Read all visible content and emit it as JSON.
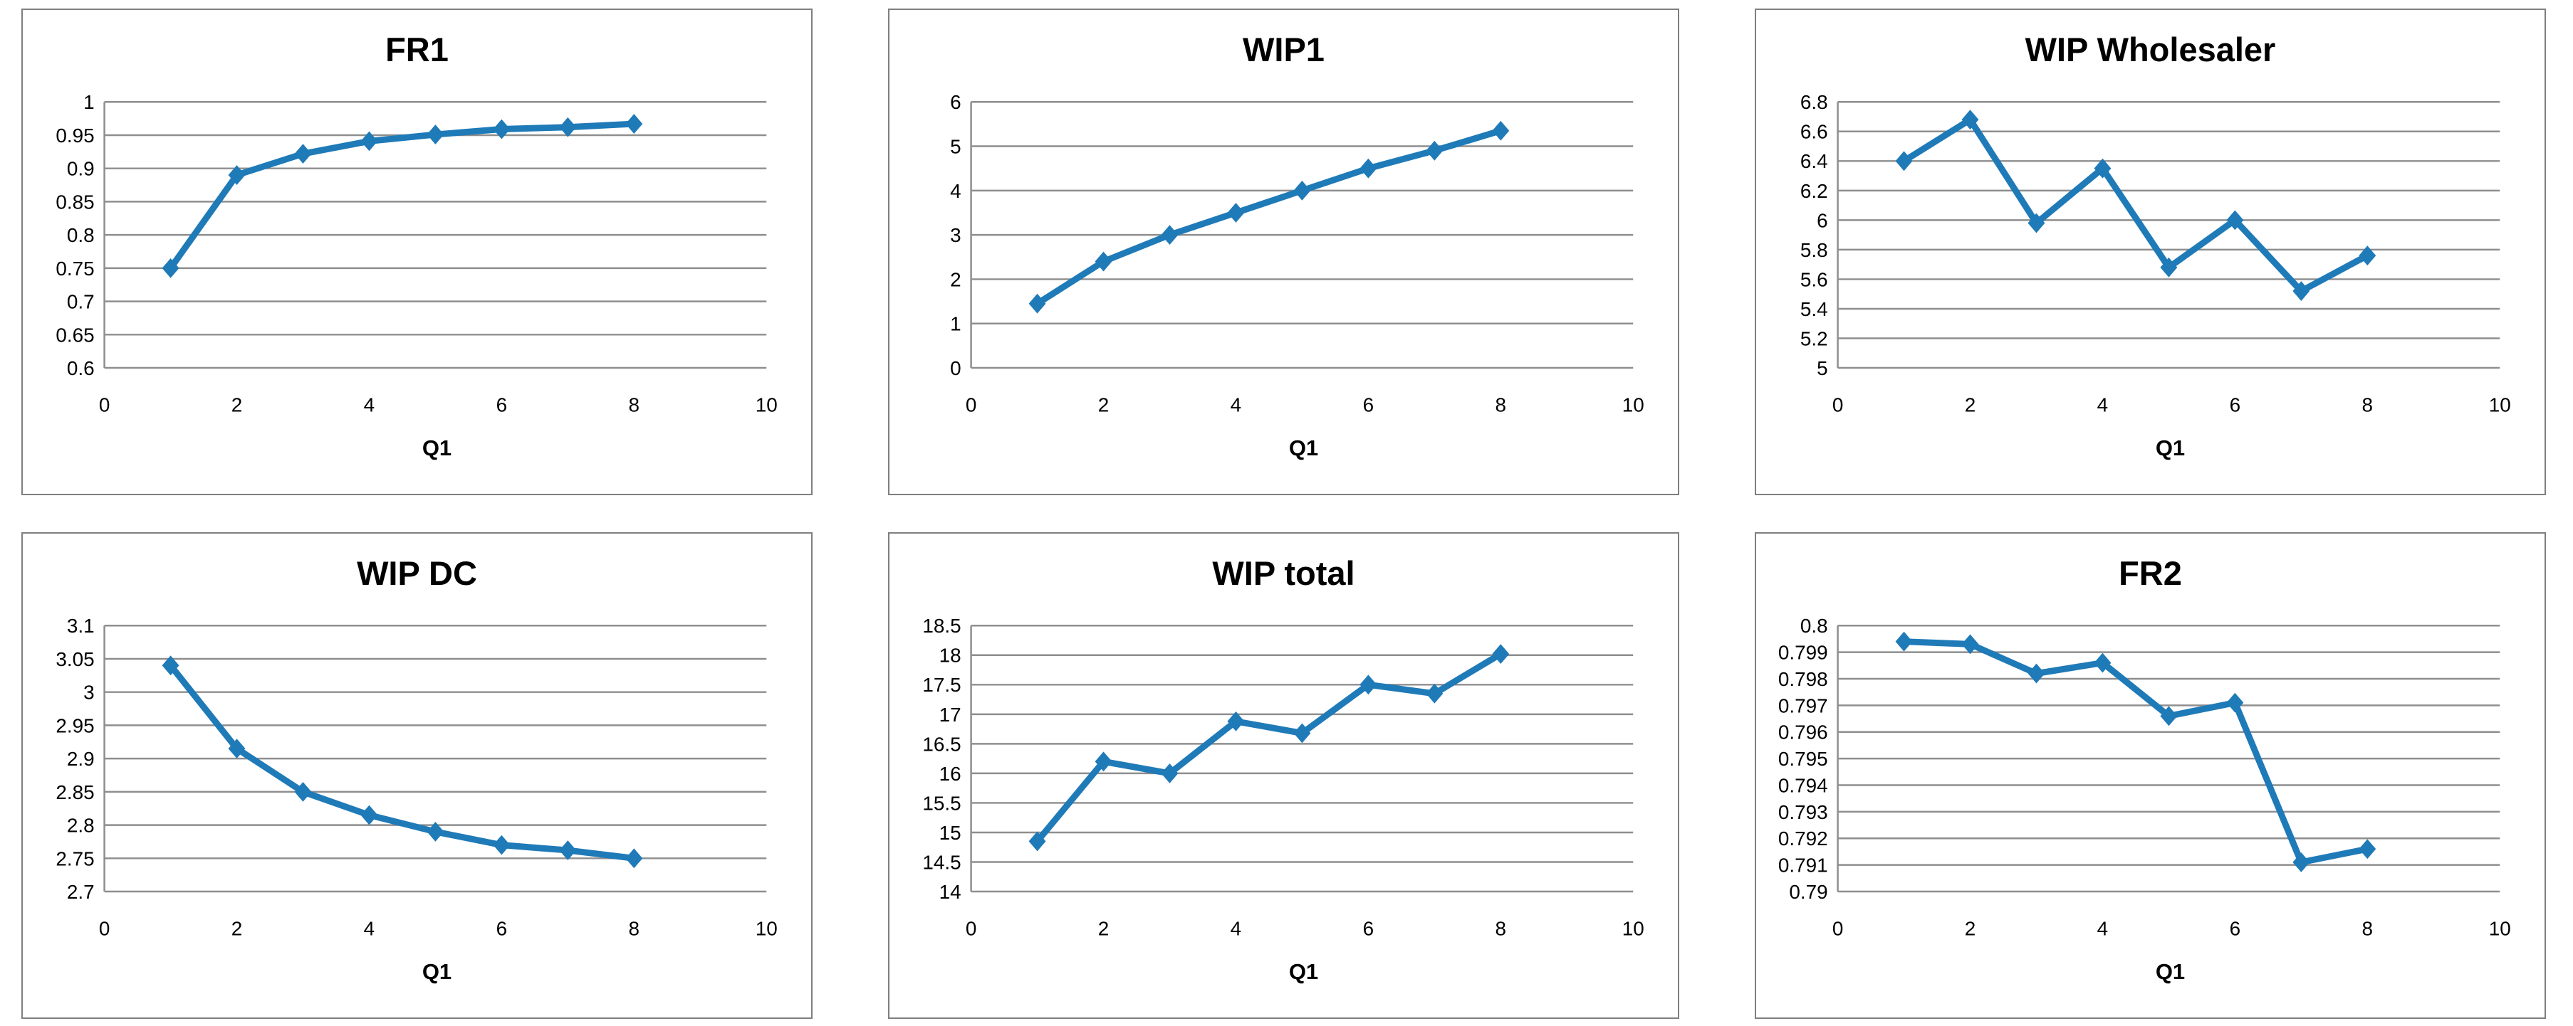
{
  "styles": {
    "series_color": "#1f7ab8",
    "grid_color": "#8e8e8e",
    "axis_color": "#8e8e8e",
    "panel_border_color": "#7f7f7f",
    "text_color": "#000000",
    "background": "#ffffff",
    "marker": "diamond"
  },
  "chart_data": [
    {
      "type": "line",
      "title": "FR1",
      "xlabel": "Q1",
      "x": [
        1,
        2,
        3,
        4,
        5,
        6,
        7,
        8
      ],
      "values": [
        0.75,
        0.89,
        0.922,
        0.941,
        0.951,
        0.959,
        0.962,
        0.967
      ],
      "xlim": [
        0,
        10
      ],
      "xticks": [
        0,
        2,
        4,
        6,
        8,
        10
      ],
      "xtick_labels": [
        "0",
        "2",
        "4",
        "6",
        "8",
        "10"
      ],
      "ylim": [
        0.6,
        1
      ],
      "yticks": [
        0.6,
        0.65,
        0.7,
        0.75,
        0.8,
        0.85,
        0.9,
        0.95,
        1
      ],
      "ytick_labels": [
        "0.6",
        "0.65",
        "0.7",
        "0.75",
        "0.8",
        "0.85",
        "0.9",
        "0.95",
        "1"
      ],
      "grid": "horizontal",
      "legend": "none"
    },
    {
      "type": "line",
      "title": "WIP1",
      "xlabel": "Q1",
      "x": [
        1,
        2,
        3,
        4,
        5,
        6,
        7,
        8
      ],
      "values": [
        1.45,
        2.4,
        3.0,
        3.5,
        4.0,
        4.5,
        4.9,
        5.35
      ],
      "xlim": [
        0,
        10
      ],
      "xticks": [
        0,
        2,
        4,
        6,
        8,
        10
      ],
      "xtick_labels": [
        "0",
        "2",
        "4",
        "6",
        "8",
        "10"
      ],
      "ylim": [
        0,
        6
      ],
      "yticks": [
        0,
        1,
        2,
        3,
        4,
        5,
        6
      ],
      "ytick_labels": [
        "0",
        "1",
        "2",
        "3",
        "4",
        "5",
        "6"
      ],
      "grid": "horizontal",
      "legend": "none"
    },
    {
      "type": "line",
      "title": "WIP Wholesaler",
      "xlabel": "Q1",
      "x": [
        1,
        2,
        3,
        4,
        5,
        6,
        7,
        8
      ],
      "values": [
        6.4,
        6.68,
        5.98,
        6.35,
        5.68,
        6.0,
        5.52,
        5.76
      ],
      "xlim": [
        0,
        10
      ],
      "xticks": [
        0,
        2,
        4,
        6,
        8,
        10
      ],
      "xtick_labels": [
        "0",
        "2",
        "4",
        "6",
        "8",
        "10"
      ],
      "ylim": [
        5,
        6.8
      ],
      "yticks": [
        5,
        5.2,
        5.4,
        5.6,
        5.8,
        6,
        6.2,
        6.4,
        6.6,
        6.8
      ],
      "ytick_labels": [
        "5",
        "5.2",
        "5.4",
        "5.6",
        "5.8",
        "6",
        "6.2",
        "6.4",
        "6.6",
        "6.8"
      ],
      "grid": "horizontal",
      "legend": "none"
    },
    {
      "type": "line",
      "title": "WIP DC",
      "xlabel": "Q1",
      "x": [
        1,
        2,
        3,
        4,
        5,
        6,
        7,
        8
      ],
      "values": [
        3.04,
        2.915,
        2.85,
        2.815,
        2.79,
        2.77,
        2.762,
        2.75
      ],
      "xlim": [
        0,
        10
      ],
      "xticks": [
        0,
        2,
        4,
        6,
        8,
        10
      ],
      "xtick_labels": [
        "0",
        "2",
        "4",
        "6",
        "8",
        "10"
      ],
      "ylim": [
        2.7,
        3.1
      ],
      "yticks": [
        2.7,
        2.75,
        2.8,
        2.85,
        2.9,
        2.95,
        3,
        3.05,
        3.1
      ],
      "ytick_labels": [
        "2.7",
        "2.75",
        "2.8",
        "2.85",
        "2.9",
        "2.95",
        "3",
        "3.05",
        "3.1"
      ],
      "grid": "horizontal",
      "legend": "none"
    },
    {
      "type": "line",
      "title": "WIP total",
      "xlabel": "Q1",
      "x": [
        1,
        2,
        3,
        4,
        5,
        6,
        7,
        8
      ],
      "values": [
        14.85,
        16.2,
        16.0,
        16.88,
        16.68,
        17.5,
        17.35,
        18.02
      ],
      "xlim": [
        0,
        10
      ],
      "xticks": [
        0,
        2,
        4,
        6,
        8,
        10
      ],
      "xtick_labels": [
        "0",
        "2",
        "4",
        "6",
        "8",
        "10"
      ],
      "ylim": [
        14,
        18.5
      ],
      "yticks": [
        14,
        14.5,
        15,
        15.5,
        16,
        16.5,
        17,
        17.5,
        18,
        18.5
      ],
      "ytick_labels": [
        "14",
        "14.5",
        "15",
        "15.5",
        "16",
        "16.5",
        "17",
        "17.5",
        "18",
        "18.5"
      ],
      "grid": "horizontal",
      "legend": "none"
    },
    {
      "type": "line",
      "title": "FR2",
      "xlabel": "Q1",
      "x": [
        1,
        2,
        3,
        4,
        5,
        6,
        7,
        8
      ],
      "values": [
        0.7994,
        0.7993,
        0.7982,
        0.7986,
        0.7966,
        0.7971,
        0.7911,
        0.7916
      ],
      "xlim": [
        0,
        10
      ],
      "xticks": [
        0,
        2,
        4,
        6,
        8,
        10
      ],
      "xtick_labels": [
        "0",
        "2",
        "4",
        "6",
        "8",
        "10"
      ],
      "ylim": [
        0.79,
        0.8
      ],
      "yticks": [
        0.79,
        0.791,
        0.792,
        0.793,
        0.794,
        0.795,
        0.796,
        0.797,
        0.798,
        0.799,
        0.8
      ],
      "ytick_labels": [
        "0.79",
        "0.791",
        "0.792",
        "0.793",
        "0.794",
        "0.795",
        "0.796",
        "0.797",
        "0.798",
        "0.799",
        "0.8"
      ],
      "grid": "horizontal",
      "legend": "none"
    }
  ]
}
